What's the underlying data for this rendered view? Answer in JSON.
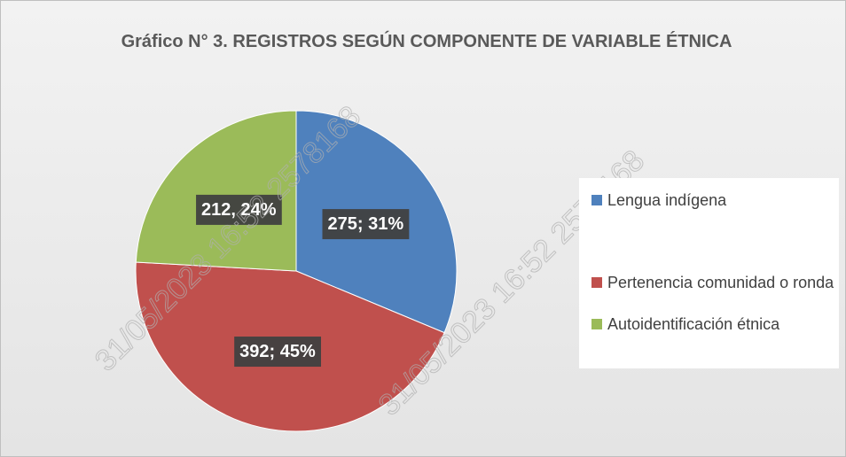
{
  "chart_data": {
    "type": "pie",
    "title": "Gráfico N° 3. REGISTROS SEGÚN COMPONENTE DE VARIABLE ÉTNICA",
    "categories": [
      "Lengua indígena",
      "Pertenencia comunidad o ronda",
      "Autoidentificación étnica"
    ],
    "values": [
      275,
      392,
      212
    ],
    "value_labels": [
      "275; 31%",
      "392; 45%",
      "212, 24%"
    ],
    "colors": [
      "#4f81bd",
      "#c0504d",
      "#9bbb59"
    ],
    "legend": "right",
    "watermark": "31/05/2023 16:52 2578168"
  }
}
